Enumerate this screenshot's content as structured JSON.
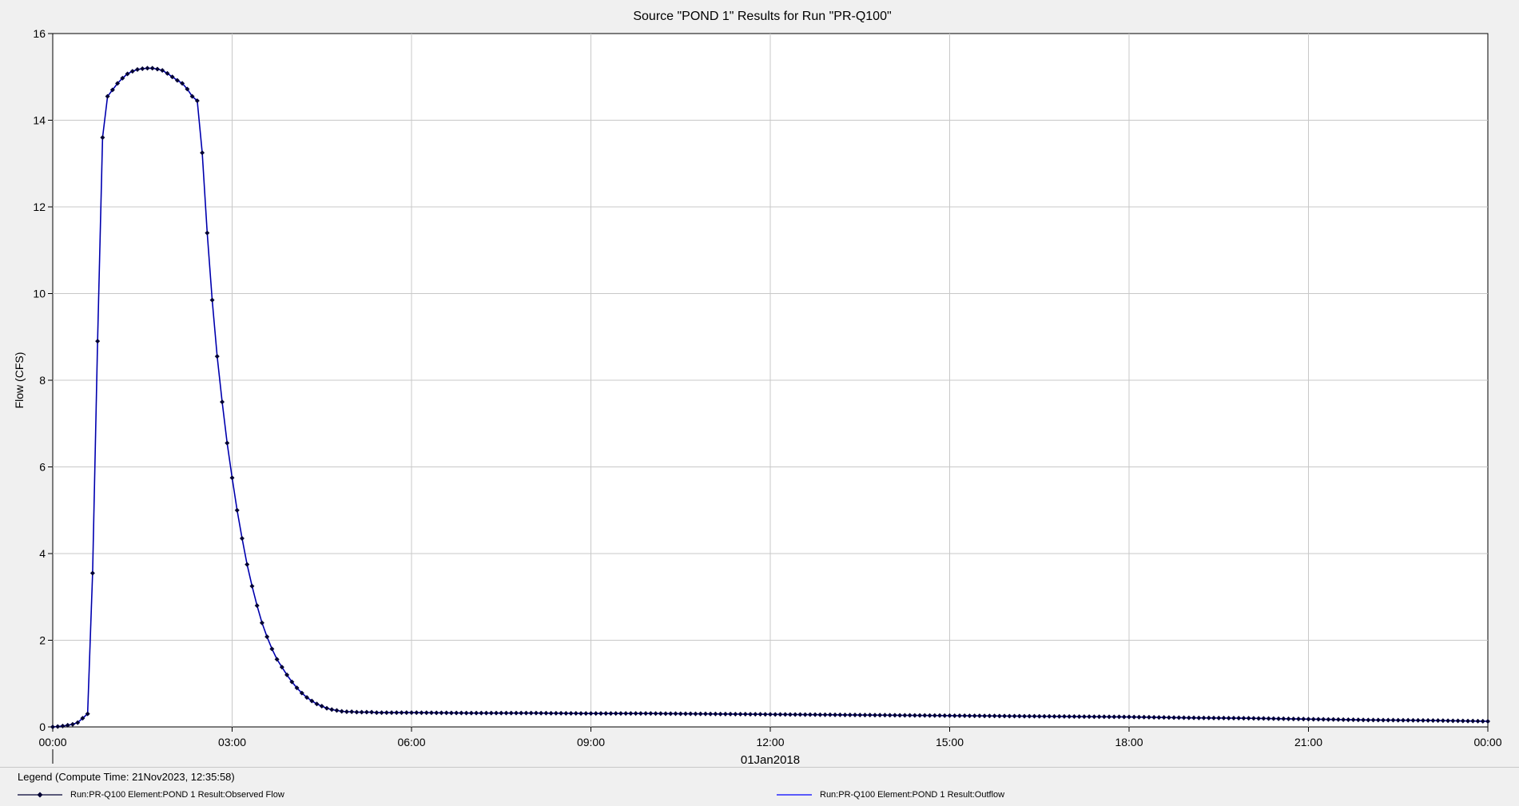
{
  "chart_data": {
    "type": "line",
    "title": "Source \"POND 1\" Results for Run \"PR-Q100\"",
    "ylabel": "Flow (CFS)",
    "xlabel": "01Jan2018",
    "ylim": [
      0,
      16
    ],
    "xlim_hours": [
      0,
      24
    ],
    "y_ticks": [
      "0",
      "2",
      "4",
      "6",
      "8",
      "10",
      "12",
      "14",
      "16"
    ],
    "x_ticks": [
      "00:00",
      "03:00",
      "06:00",
      "09:00",
      "12:00",
      "15:00",
      "18:00",
      "21:00",
      "00:00"
    ],
    "x_tick_hours": [
      0,
      3,
      6,
      9,
      12,
      15,
      18,
      21,
      24
    ],
    "grid": true,
    "time_step_minutes": 5,
    "x_unit": "hours",
    "series": [
      {
        "name": "Run:PR-Q100 Element:POND 1 Result:Observed Flow",
        "color": "#000033",
        "marker": "diamond",
        "x": [
          0,
          0.0833,
          0.1667,
          0.25,
          0.3333,
          0.4167,
          0.5,
          0.5833,
          0.6667,
          0.75,
          0.8333,
          0.9167,
          1,
          1.0833,
          1.1667,
          1.25,
          1.3333,
          1.4167,
          1.5,
          1.5833,
          1.6667,
          1.75,
          1.8333,
          1.9167,
          2,
          2.0833,
          2.1667,
          2.25,
          2.3333,
          2.4167,
          2.5,
          2.5833,
          2.6667,
          2.75,
          2.8333,
          2.9167,
          3,
          3.0833,
          3.1667,
          3.25,
          3.3333,
          3.4167,
          3.5,
          3.5833,
          3.6667,
          3.75,
          3.8333,
          3.9167,
          4,
          4.0833,
          4.1667,
          4.25,
          4.3333,
          4.4167,
          4.5,
          4.5833,
          4.6667,
          4.75,
          4.8333,
          4.9167,
          5,
          5.0833,
          5.1667,
          5.25,
          5.3333,
          5.4167,
          5.5,
          6,
          7,
          8,
          9,
          10,
          11,
          12,
          13,
          14,
          15,
          16,
          17,
          18,
          19,
          20,
          21,
          22,
          23,
          24
        ],
        "y": [
          0,
          0.01,
          0.02,
          0.04,
          0.06,
          0.1,
          0.2,
          0.3,
          3.55,
          8.9,
          13.6,
          14.55,
          14.7,
          14.85,
          14.97,
          15.07,
          15.13,
          15.17,
          15.19,
          15.2,
          15.2,
          15.18,
          15.15,
          15.08,
          15.0,
          14.92,
          14.85,
          14.72,
          14.55,
          14.45,
          13.25,
          11.4,
          9.85,
          8.55,
          7.5,
          6.55,
          5.75,
          5.0,
          4.35,
          3.75,
          3.25,
          2.8,
          2.4,
          2.08,
          1.8,
          1.56,
          1.38,
          1.2,
          1.04,
          0.9,
          0.78,
          0.68,
          0.6,
          0.53,
          0.48,
          0.43,
          0.4,
          0.38,
          0.36,
          0.35,
          0.35,
          0.34,
          0.34,
          0.34,
          0.34,
          0.33,
          0.33,
          0.33,
          0.32,
          0.32,
          0.31,
          0.31,
          0.3,
          0.29,
          0.28,
          0.27,
          0.26,
          0.25,
          0.24,
          0.23,
          0.21,
          0.2,
          0.18,
          0.16,
          0.15,
          0.13
        ]
      },
      {
        "name": "Run:PR-Q100 Element:POND 1 Result:Outflow",
        "color": "#0000ff",
        "marker": "none",
        "same_as": "Observed Flow"
      }
    ]
  },
  "legend": {
    "title": "Legend (Compute Time: 21Nov2023, 12:35:58)",
    "entries": [
      {
        "label": "Run:PR-Q100 Element:POND 1 Result:Observed Flow",
        "color": "#000033",
        "marker": "diamond"
      },
      {
        "label": "Run:PR-Q100 Element:POND 1 Result:Outflow",
        "color": "#0000ff",
        "marker": "none"
      }
    ]
  }
}
